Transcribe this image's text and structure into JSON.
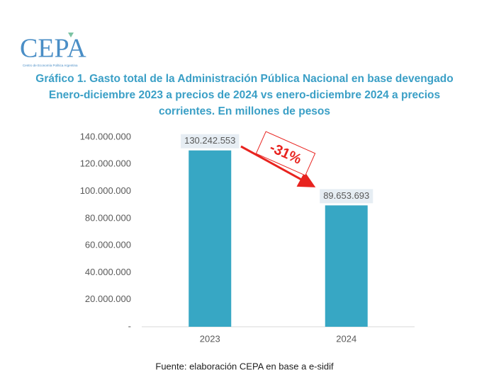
{
  "logo": {
    "name": "CEPA",
    "subtitle": "Centro de Economía Política Argentina"
  },
  "chart_data": {
    "type": "bar",
    "title": [
      "Gráfico 1. Gasto total de la Administración Pública Nacional en base devengado",
      "Enero-diciembre 2023 a precios de 2024 vs enero-diciembre 2024 a precios",
      "corrientes. En millones de pesos"
    ],
    "categories": [
      "2023",
      "2024"
    ],
    "values": [
      130242553,
      89653693
    ],
    "value_labels": [
      "130.242.553",
      "89.653.693"
    ],
    "color": "#37a7c4",
    "ylim": [
      0,
      140000000
    ],
    "yticks": [
      {
        "value": 0,
        "label": "-"
      },
      {
        "value": 20000000,
        "label": "20.000.000"
      },
      {
        "value": 40000000,
        "label": "40.000.000"
      },
      {
        "value": 60000000,
        "label": "60.000.000"
      },
      {
        "value": 80000000,
        "label": "80.000.000"
      },
      {
        "value": 100000000,
        "label": "100.000.000"
      },
      {
        "value": 120000000,
        "label": "120.000.000"
      },
      {
        "value": 140000000,
        "label": "140.000.000"
      }
    ],
    "annotation": "-31%",
    "source": "Fuente: elaboración CEPA en base a e-sidif"
  }
}
